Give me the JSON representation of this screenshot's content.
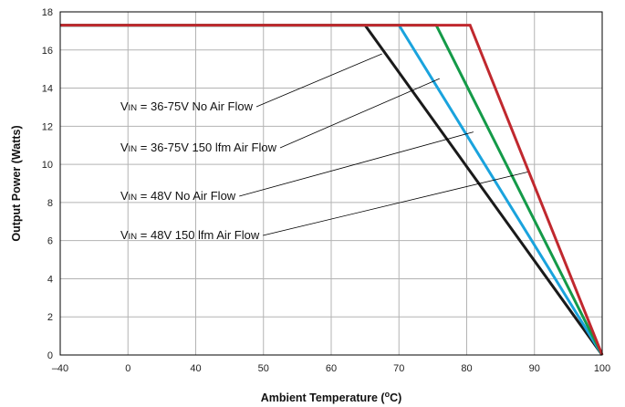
{
  "chart_data": {
    "type": "line",
    "xlabel": "Ambient Temperature (",
    "xlabel_unit": "o",
    "xlabel_end": "C)",
    "ylabel": "Output Power (Watts)",
    "x_ticks": [
      "–40",
      "0",
      "40",
      "50",
      "60",
      "70",
      "80",
      "90",
      "100"
    ],
    "y_ticks": [
      "0",
      "2",
      "4",
      "6",
      "8",
      "10",
      "12",
      "14",
      "16",
      "18"
    ],
    "ylim": [
      0,
      18
    ],
    "grid": true,
    "series": [
      {
        "color": "#1a1a1a",
        "x": [
          "–40",
          "65",
          "100"
        ],
        "y": [
          17.3,
          17.3,
          0
        ]
      },
      {
        "color": "#1aa3dd",
        "x": [
          "–40",
          "70",
          "100"
        ],
        "y": [
          17.3,
          17.3,
          0
        ]
      },
      {
        "color": "#149a48",
        "x": [
          "–40",
          "75.5",
          "100"
        ],
        "y": [
          17.3,
          17.3,
          0
        ]
      },
      {
        "color": "#c0282e",
        "x": [
          "–40",
          "80.5",
          "100"
        ],
        "y": [
          17.3,
          17.3,
          0
        ]
      }
    ],
    "annotations": [
      {
        "prefix": "V",
        "sub": "IN",
        "text": " = 36-75V No Air Flow",
        "points_to_x": "67.5",
        "points_to_y": 15.8
      },
      {
        "prefix": "V",
        "sub": "IN",
        "text": " = 36-75V 150 lfm Air Flow",
        "points_to_x": "76",
        "points_to_y": 14.5
      },
      {
        "prefix": "V",
        "sub": "IN",
        "text": " = 48V No Air Flow",
        "points_to_x": "81",
        "points_to_y": 11.7
      },
      {
        "prefix": "V",
        "sub": "IN",
        "text": " = 48V 150 lfm Air Flow",
        "points_to_x": "89",
        "points_to_y": 9.6
      }
    ]
  }
}
